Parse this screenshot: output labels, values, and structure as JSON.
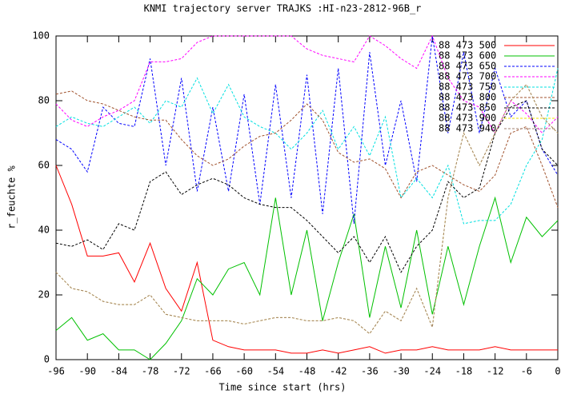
{
  "chart_data": {
    "type": "line",
    "title": "KNMI trajectory server TRAJKS :HI-n23-2812-96B_r",
    "xlabel": "Time since start (hrs)",
    "ylabel": "r_feuchte %",
    "x": [
      -96,
      -93,
      -90,
      -87,
      -84,
      -81,
      -78,
      -75,
      -72,
      -69,
      -66,
      -63,
      -60,
      -57,
      -54,
      -51,
      -48,
      -45,
      -42,
      -39,
      -36,
      -33,
      -30,
      -27,
      -24,
      -21,
      -18,
      -15,
      -12,
      -9,
      -6,
      -3,
      0
    ],
    "xlim": [
      -96,
      0
    ],
    "xticks": [
      -96,
      -90,
      -84,
      -78,
      -72,
      -66,
      -60,
      -54,
      -48,
      -42,
      -36,
      -30,
      -24,
      -18,
      -12,
      -6,
      0
    ],
    "ylim": [
      0,
      100
    ],
    "yticks": [
      0,
      20,
      40,
      60,
      80,
      100
    ],
    "legend": "top-right",
    "series": [
      {
        "name": "88 473 500",
        "color": "#ff0000",
        "dashed": false,
        "values": [
          60,
          48,
          32,
          32,
          33,
          24,
          36,
          22,
          15,
          30,
          6,
          4,
          3,
          3,
          3,
          2,
          2,
          3,
          2,
          3,
          4,
          2,
          3,
          3,
          4,
          3,
          3,
          3,
          4,
          3,
          3,
          3,
          3
        ]
      },
      {
        "name": "88 473 600",
        "color": "#00c000",
        "dashed": false,
        "values": [
          9,
          13,
          6,
          8,
          3,
          3,
          0,
          5,
          12,
          25,
          20,
          28,
          30,
          20,
          50,
          20,
          40,
          12,
          30,
          45,
          13,
          35,
          16,
          40,
          14,
          35,
          17,
          35,
          50,
          30,
          44,
          38,
          43
        ]
      },
      {
        "name": "88 473 650",
        "color": "#0000ff",
        "dashed": true,
        "values": [
          68,
          65,
          58,
          78,
          73,
          72,
          93,
          60,
          87,
          52,
          78,
          52,
          82,
          48,
          85,
          50,
          88,
          45,
          90,
          42,
          95,
          60,
          80,
          55,
          100,
          70,
          95,
          70,
          90,
          75,
          80,
          65,
          57
        ]
      },
      {
        "name": "88 473 700",
        "color": "#ff00ff",
        "dashed": true,
        "values": [
          79,
          74,
          72,
          75,
          77,
          80,
          92,
          92,
          93,
          98,
          100,
          100,
          100,
          100,
          100,
          100,
          96,
          94,
          93,
          92,
          100,
          97,
          93,
          90,
          100,
          87,
          80,
          78,
          70,
          80,
          76,
          70,
          75
        ]
      },
      {
        "name": "88 473 750",
        "color": "#00e0e0",
        "dashed": true,
        "values": [
          72,
          75,
          73,
          72,
          75,
          78,
          73,
          80,
          78,
          87,
          76,
          85,
          75,
          72,
          70,
          65,
          70,
          77,
          65,
          72,
          63,
          75,
          50,
          56,
          50,
          60,
          42,
          43,
          43,
          48,
          60,
          68,
          90
        ]
      },
      {
        "name": "88 473 800",
        "color": "#a0522d",
        "dashed": true,
        "values": [
          82,
          83,
          80,
          79,
          77,
          75,
          74,
          74,
          68,
          63,
          60,
          62,
          66,
          69,
          70,
          74,
          79,
          74,
          64,
          61,
          62,
          59,
          50,
          58,
          60,
          57,
          54,
          52,
          57,
          70,
          72,
          60,
          47
        ]
      },
      {
        "name": "88 473 850",
        "color": "#000000",
        "dashed": true,
        "values": [
          36,
          35,
          37,
          34,
          42,
          40,
          55,
          58,
          51,
          54,
          56,
          54,
          50,
          48,
          47,
          47,
          43,
          38,
          33,
          38,
          30,
          38,
          27,
          35,
          40,
          55,
          50,
          53,
          70,
          78,
          80,
          65,
          60
        ]
      },
      {
        "name": "88 473 900",
        "color": "#f0e000",
        "dashed": true,
        "values": [
          27,
          22,
          21,
          18,
          17,
          17,
          20,
          14,
          13,
          12,
          12,
          12,
          11,
          12,
          13,
          13,
          12,
          12,
          13,
          12,
          8,
          15,
          12,
          22,
          10,
          50,
          70,
          60,
          70,
          80,
          85,
          75,
          70
        ]
      },
      {
        "name": "88 473 940",
        "color": "#a08070",
        "dashed": true,
        "values": [
          27,
          22,
          21,
          18,
          17,
          17,
          20,
          14,
          13,
          12,
          12,
          12,
          11,
          12,
          13,
          13,
          12,
          12,
          13,
          12,
          8,
          15,
          12,
          22,
          10,
          50,
          70,
          60,
          70,
          80,
          85,
          75,
          70
        ]
      }
    ]
  }
}
